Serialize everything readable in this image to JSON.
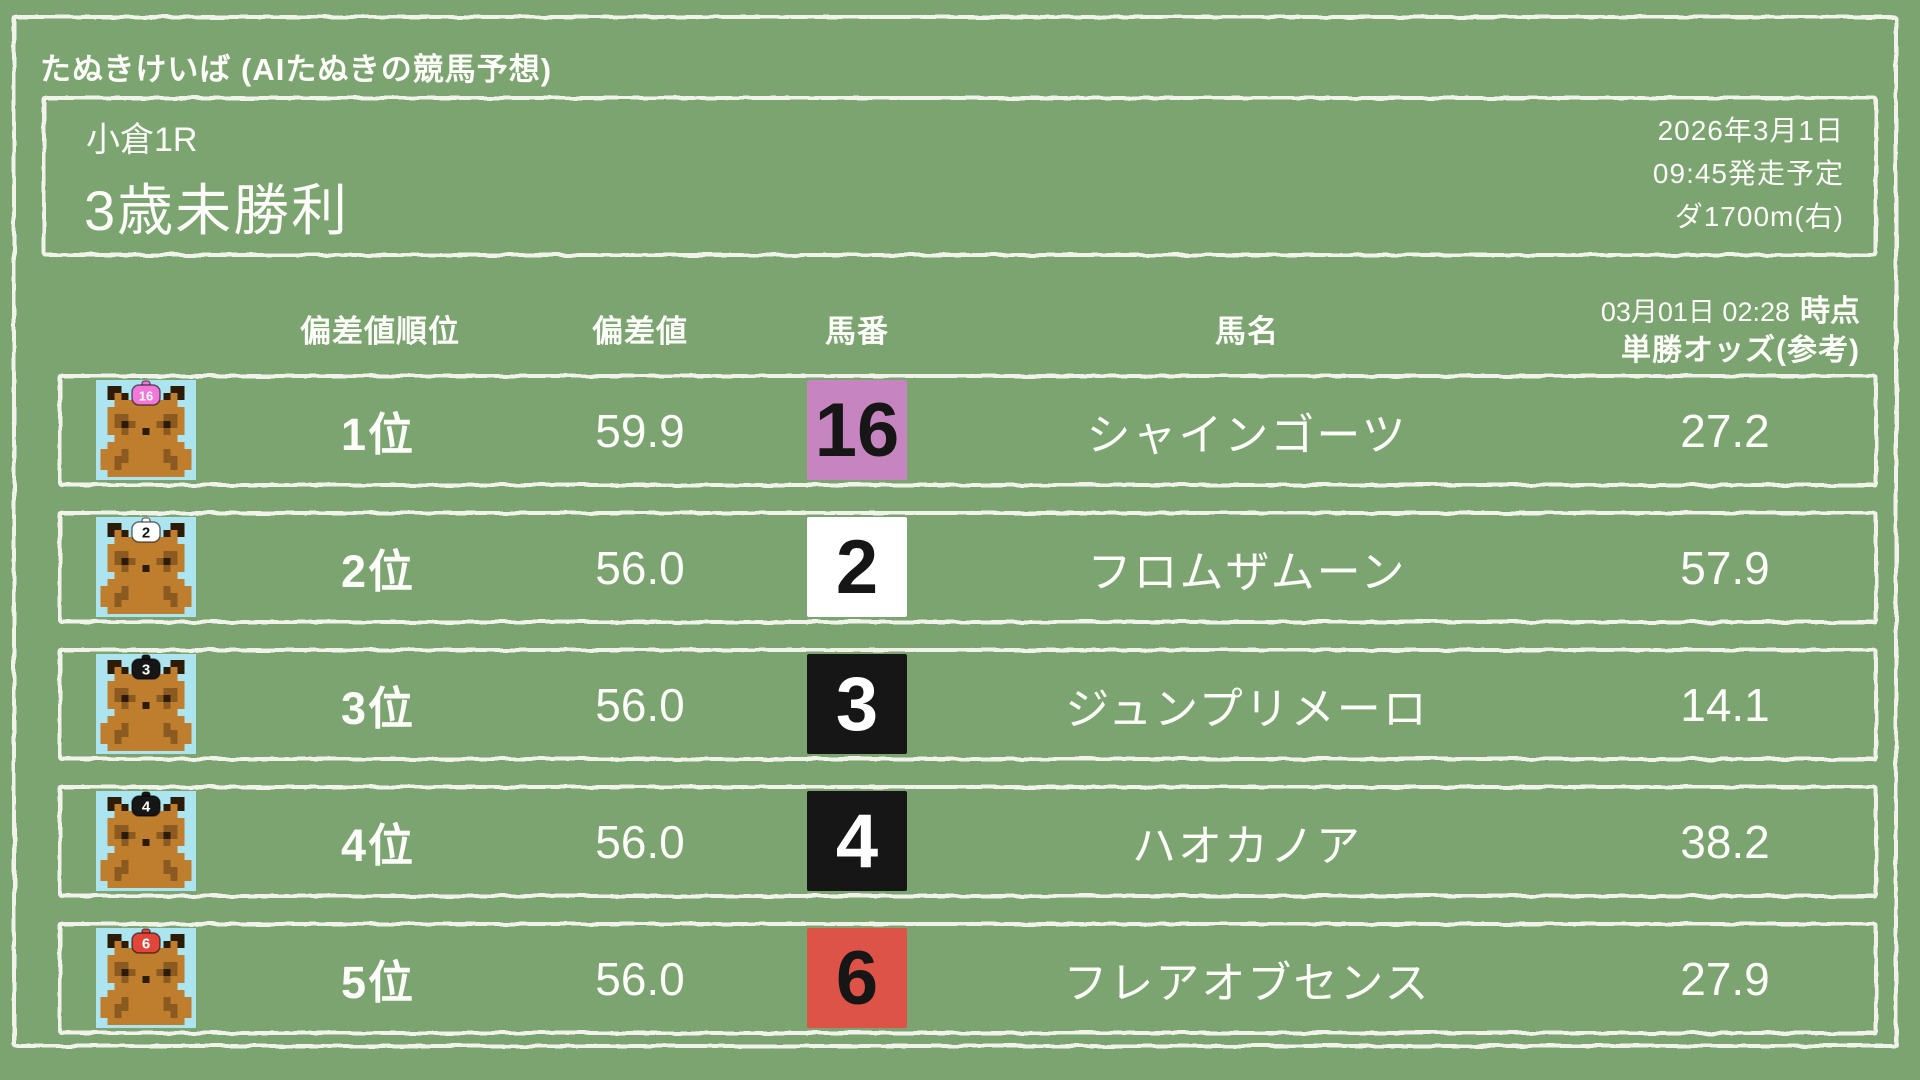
{
  "header": {
    "site_title": "たぬきけいば (AIたぬきの競馬予想)"
  },
  "race_info": {
    "race_number": "小倉1R",
    "race_name": "3歳未勝利",
    "date": "2026年3月1日",
    "start_time": "09:45発走予定",
    "course": "ダ1700m(右)"
  },
  "table": {
    "columns": {
      "rank": "偏差値順位",
      "deviation": "偏差値",
      "horse_number": "馬番",
      "horse_name": "馬名",
      "odds_timestamp": "03月01日 02:28",
      "odds_timestamp_suffix": "時点",
      "odds_label": "単勝オッズ(参考)"
    },
    "rows": [
      {
        "rank": "1位",
        "deviation": "59.9",
        "number": "16",
        "name": "シャインゴーツ",
        "odds": "27.2",
        "number_bg": "#C684C0",
        "number_fg": "#161616",
        "cap_bg": "#F078D8",
        "cap_fg": "#FFFFFF"
      },
      {
        "rank": "2位",
        "deviation": "56.0",
        "number": "2",
        "name": "フロムザムーン",
        "odds": "57.9",
        "number_bg": "#FFFFFF",
        "number_fg": "#161616",
        "cap_bg": "#FFFFFF",
        "cap_fg": "#161616"
      },
      {
        "rank": "3位",
        "deviation": "56.0",
        "number": "3",
        "name": "ジュンプリメーロ",
        "odds": "14.1",
        "number_bg": "#161616",
        "number_fg": "#FFFFFF",
        "cap_bg": "#161616",
        "cap_fg": "#FFFFFF"
      },
      {
        "rank": "4位",
        "deviation": "56.0",
        "number": "4",
        "name": "ハオカノア",
        "odds": "38.2",
        "number_bg": "#161616",
        "number_fg": "#FFFFFF",
        "cap_bg": "#161616",
        "cap_fg": "#FFFFFF"
      },
      {
        "rank": "5位",
        "deviation": "56.0",
        "number": "6",
        "name": "フレアオブセンス",
        "odds": "27.9",
        "number_bg": "#DD5348",
        "number_fg": "#161616",
        "cap_bg": "#E2463B",
        "cap_fg": "#FFFFFF"
      }
    ]
  },
  "colors": {
    "background": "#7BA471",
    "chalk": "#F1F3EA",
    "text": "#FCFCF8",
    "avatar_bg": "#ACE4F0"
  }
}
